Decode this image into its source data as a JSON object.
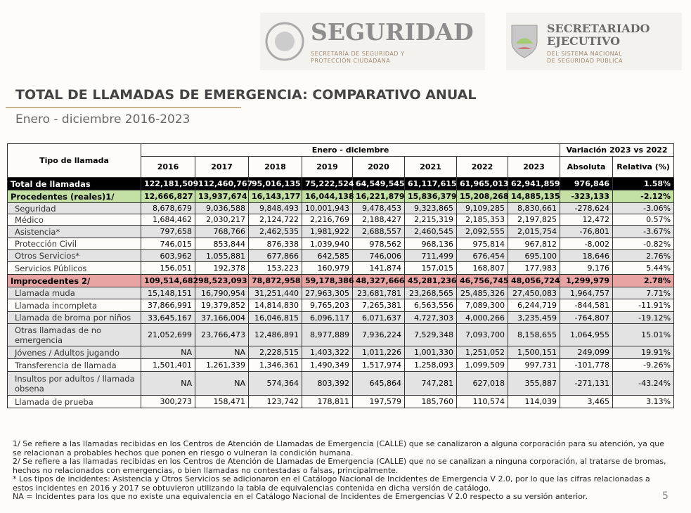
{
  "header": {
    "logo1_title": "SEGURIDAD",
    "logo1_subtitle": "SECRETARÍA DE SEGURIDAD Y PROTECCIÓN CIUDADANA",
    "logo2_title": "SECRETARIADO EJECUTIVO",
    "logo2_subtitle": "DEL SISTEMA NACIONAL DE SEGURIDAD PÚBLICA"
  },
  "title": "TOTAL DE LLAMADAS DE EMERGENCIA: COMPARATIVO ANUAL",
  "subtitle": "Enero - diciembre 2016-2023",
  "table": {
    "corner": "Tipo de llamada",
    "group1": "Enero - diciembre",
    "group2": "Variación 2023 vs 2022",
    "columns": [
      "2016",
      "2017",
      "2018",
      "2019",
      "2020",
      "2021",
      "2022",
      "2023",
      "Absoluta",
      "Relativa (%)"
    ],
    "rows": [
      [
        "Total de llamadas",
        "122,181,509",
        "112,460,767",
        "95,016,135",
        "75,222,524",
        "64,549,545",
        "61,117,615",
        "61,965,013",
        "62,941,859",
        "976,846",
        "1.58%"
      ],
      [
        "Procedentes (reales)1/",
        "12,666,827",
        "13,937,674",
        "16,143,177",
        "16,044,138",
        "16,221,879",
        "15,836,379",
        "15,208,268",
        "14,885,135",
        "-323,133",
        "-2.12%"
      ],
      [
        "Seguridad",
        "8,678,679",
        "9,036,588",
        "9,848,493",
        "10,001,943",
        "9,478,453",
        "9,323,865",
        "9,109,285",
        "8,830,661",
        "-278,624",
        "-3.06%"
      ],
      [
        "Médico",
        "1,684,462",
        "2,030,217",
        "2,124,722",
        "2,216,769",
        "2,188,427",
        "2,215,319",
        "2,185,353",
        "2,197,825",
        "12,472",
        "0.57%"
      ],
      [
        "Asistencia*",
        "797,658",
        "768,766",
        "2,462,535",
        "1,981,922",
        "2,688,557",
        "2,460,545",
        "2,092,555",
        "2,015,754",
        "-76,801",
        "-3.67%"
      ],
      [
        "Protección Civil",
        "746,015",
        "853,844",
        "876,338",
        "1,039,940",
        "978,562",
        "968,136",
        "975,814",
        "967,812",
        "-8,002",
        "-0.82%"
      ],
      [
        "Otros Servicios*",
        "603,962",
        "1,055,881",
        "677,866",
        "642,585",
        "746,006",
        "711,499",
        "676,454",
        "695,100",
        "18,646",
        "2.76%"
      ],
      [
        "Servicios Públicos",
        "156,051",
        "192,378",
        "153,223",
        "160,979",
        "141,874",
        "157,015",
        "168,807",
        "177,983",
        "9,176",
        "5.44%"
      ],
      [
        "Improcedentes 2/",
        "109,514,682",
        "98,523,093",
        "78,872,958",
        "59,178,386",
        "48,327,666",
        "45,281,236",
        "46,756,745",
        "48,056,724",
        "1,299,979",
        "2.78%"
      ],
      [
        "Llamada muda",
        "15,148,151",
        "16,790,954",
        "31,251,440",
        "27,963,305",
        "23,681,781",
        "23,268,565",
        "25,485,326",
        "27,450,083",
        "1,964,757",
        "7.71%"
      ],
      [
        "Llamada incompleta",
        "37,866,991",
        "19,379,852",
        "14,814,830",
        "9,765,203",
        "7,265,381",
        "6,563,556",
        "7,089,300",
        "6,244,719",
        "-844,581",
        "-11.91%"
      ],
      [
        "Llamada de broma por niños",
        "33,645,167",
        "37,166,004",
        "16,046,815",
        "6,096,117",
        "6,071,637",
        "4,727,303",
        "4,000,266",
        "3,235,459",
        "-764,807",
        "-19.12%"
      ],
      [
        "Otras llamadas de no emergencia",
        "21,052,699",
        "23,766,473",
        "12,486,891",
        "8,977,889",
        "7,936,224",
        "7,529,348",
        "7,093,700",
        "8,158,655",
        "1,064,955",
        "15.01%"
      ],
      [
        "Jóvenes / Adultos jugando",
        "NA",
        "NA",
        "2,228,515",
        "1,403,322",
        "1,011,226",
        "1,001,330",
        "1,251,052",
        "1,500,151",
        "249,099",
        "19.91%"
      ],
      [
        "Transferencia de llamada",
        "1,501,401",
        "1,261,339",
        "1,346,361",
        "1,490,349",
        "1,517,974",
        "1,258,093",
        "1,099,509",
        "997,731",
        "-101,778",
        "-9.26%"
      ],
      [
        "Insultos por adultos / llamada obsena",
        "NA",
        "NA",
        "574,364",
        "803,392",
        "645,864",
        "747,281",
        "627,018",
        "355,887",
        "-271,131",
        "-43.24%"
      ],
      [
        "Llamada de prueba",
        "300,273",
        "158,471",
        "123,742",
        "178,811",
        "197,579",
        "185,760",
        "110,574",
        "114,039",
        "3,465",
        "3.13%"
      ]
    ]
  },
  "footnotes": [
    "1/ Se refiere a las llamadas recibidas en los Centros de Atención de Llamadas de Emergencia (CALLE) que se canalizaron a alguna corporación para su atención, ya que se relacionan a probables hechos que ponen en riesgo o vulneran la condición humana.",
    "2/ Se refiere a las llamadas recibidas en los Centros de Atención de Llamadas de Emergencia (CALLE) que no se canalizan a ninguna corporación, al tratarse de bromas, hechos no relacionados con emergencias, o bien llamadas no contestadas o falsas, principalmente.",
    "* Los tipos de incidentes: Asistencia y Otros Servicios se adicionaron en el Catálogo Nacional de Incidentes de Emergencia V 2.0, por lo que las cifras relacionadas a estos incidentes en 2016 y 2017 se obtuvieron utilizando la tabla de equivalencias contenida en dicha versión de catálogo.",
    "NA = Incidentes para los que no existe una equivalencia en el Catálogo Nacional de Incidentes de Emergencias V 2.0 respecto a su versión anterior."
  ],
  "page_number": "5"
}
